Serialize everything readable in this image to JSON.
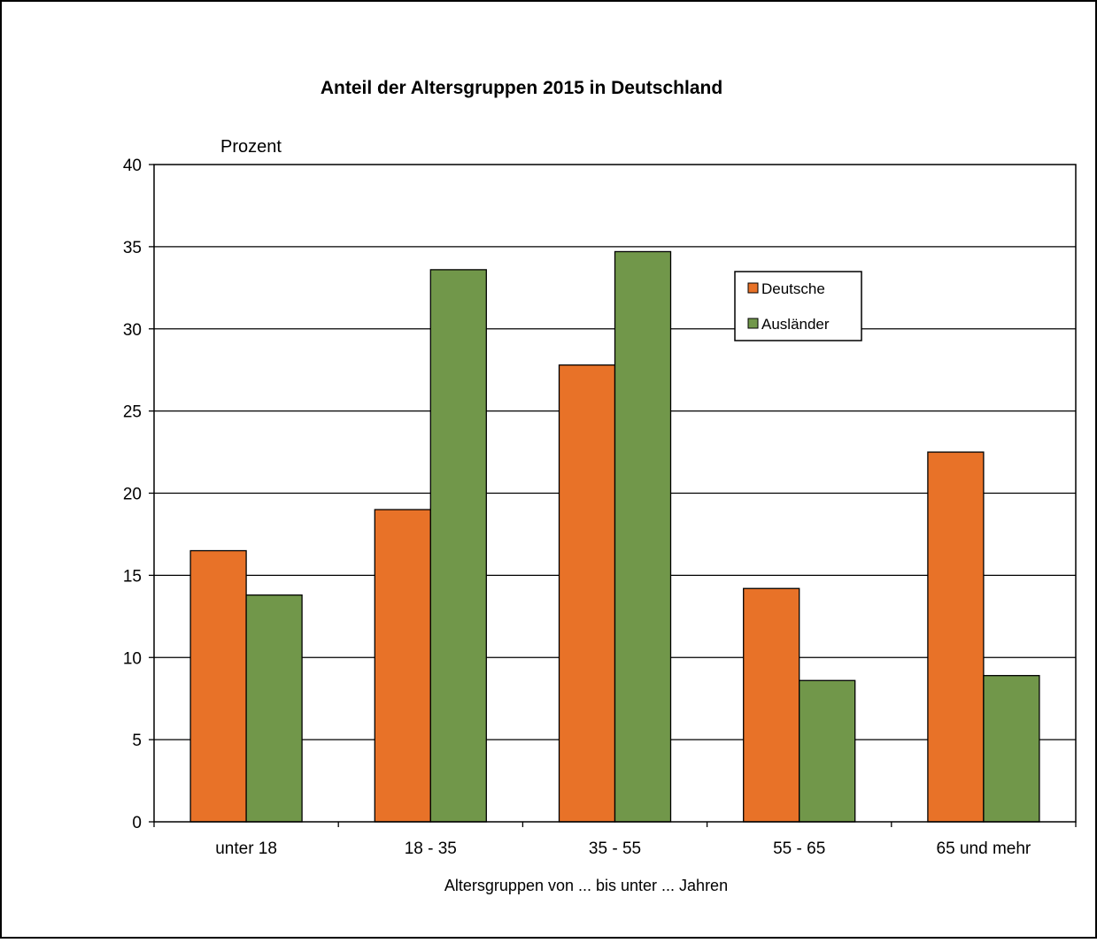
{
  "chart_data": {
    "type": "bar",
    "title": "Anteil der Altersgruppen 2015 in Deutschland",
    "ylabel": "Prozent",
    "xlabel": "Altersgruppen von ... bis unter ... Jahren",
    "categories": [
      "unter 18",
      "18 - 35",
      "35 - 55",
      "55 - 65",
      "65 und mehr"
    ],
    "series": [
      {
        "name": "Deutsche",
        "color": "#E87228",
        "values": [
          16.5,
          19.0,
          27.8,
          14.2,
          22.5
        ]
      },
      {
        "name": "Ausländer",
        "color": "#71974A",
        "values": [
          13.8,
          33.6,
          34.7,
          8.6,
          8.9
        ]
      }
    ],
    "ylim": [
      0,
      40
    ],
    "yticks": [
      "0",
      "5",
      "10",
      "15",
      "20",
      "25",
      "30",
      "35",
      "40"
    ],
    "grid": true,
    "legend_position": "top-right"
  }
}
